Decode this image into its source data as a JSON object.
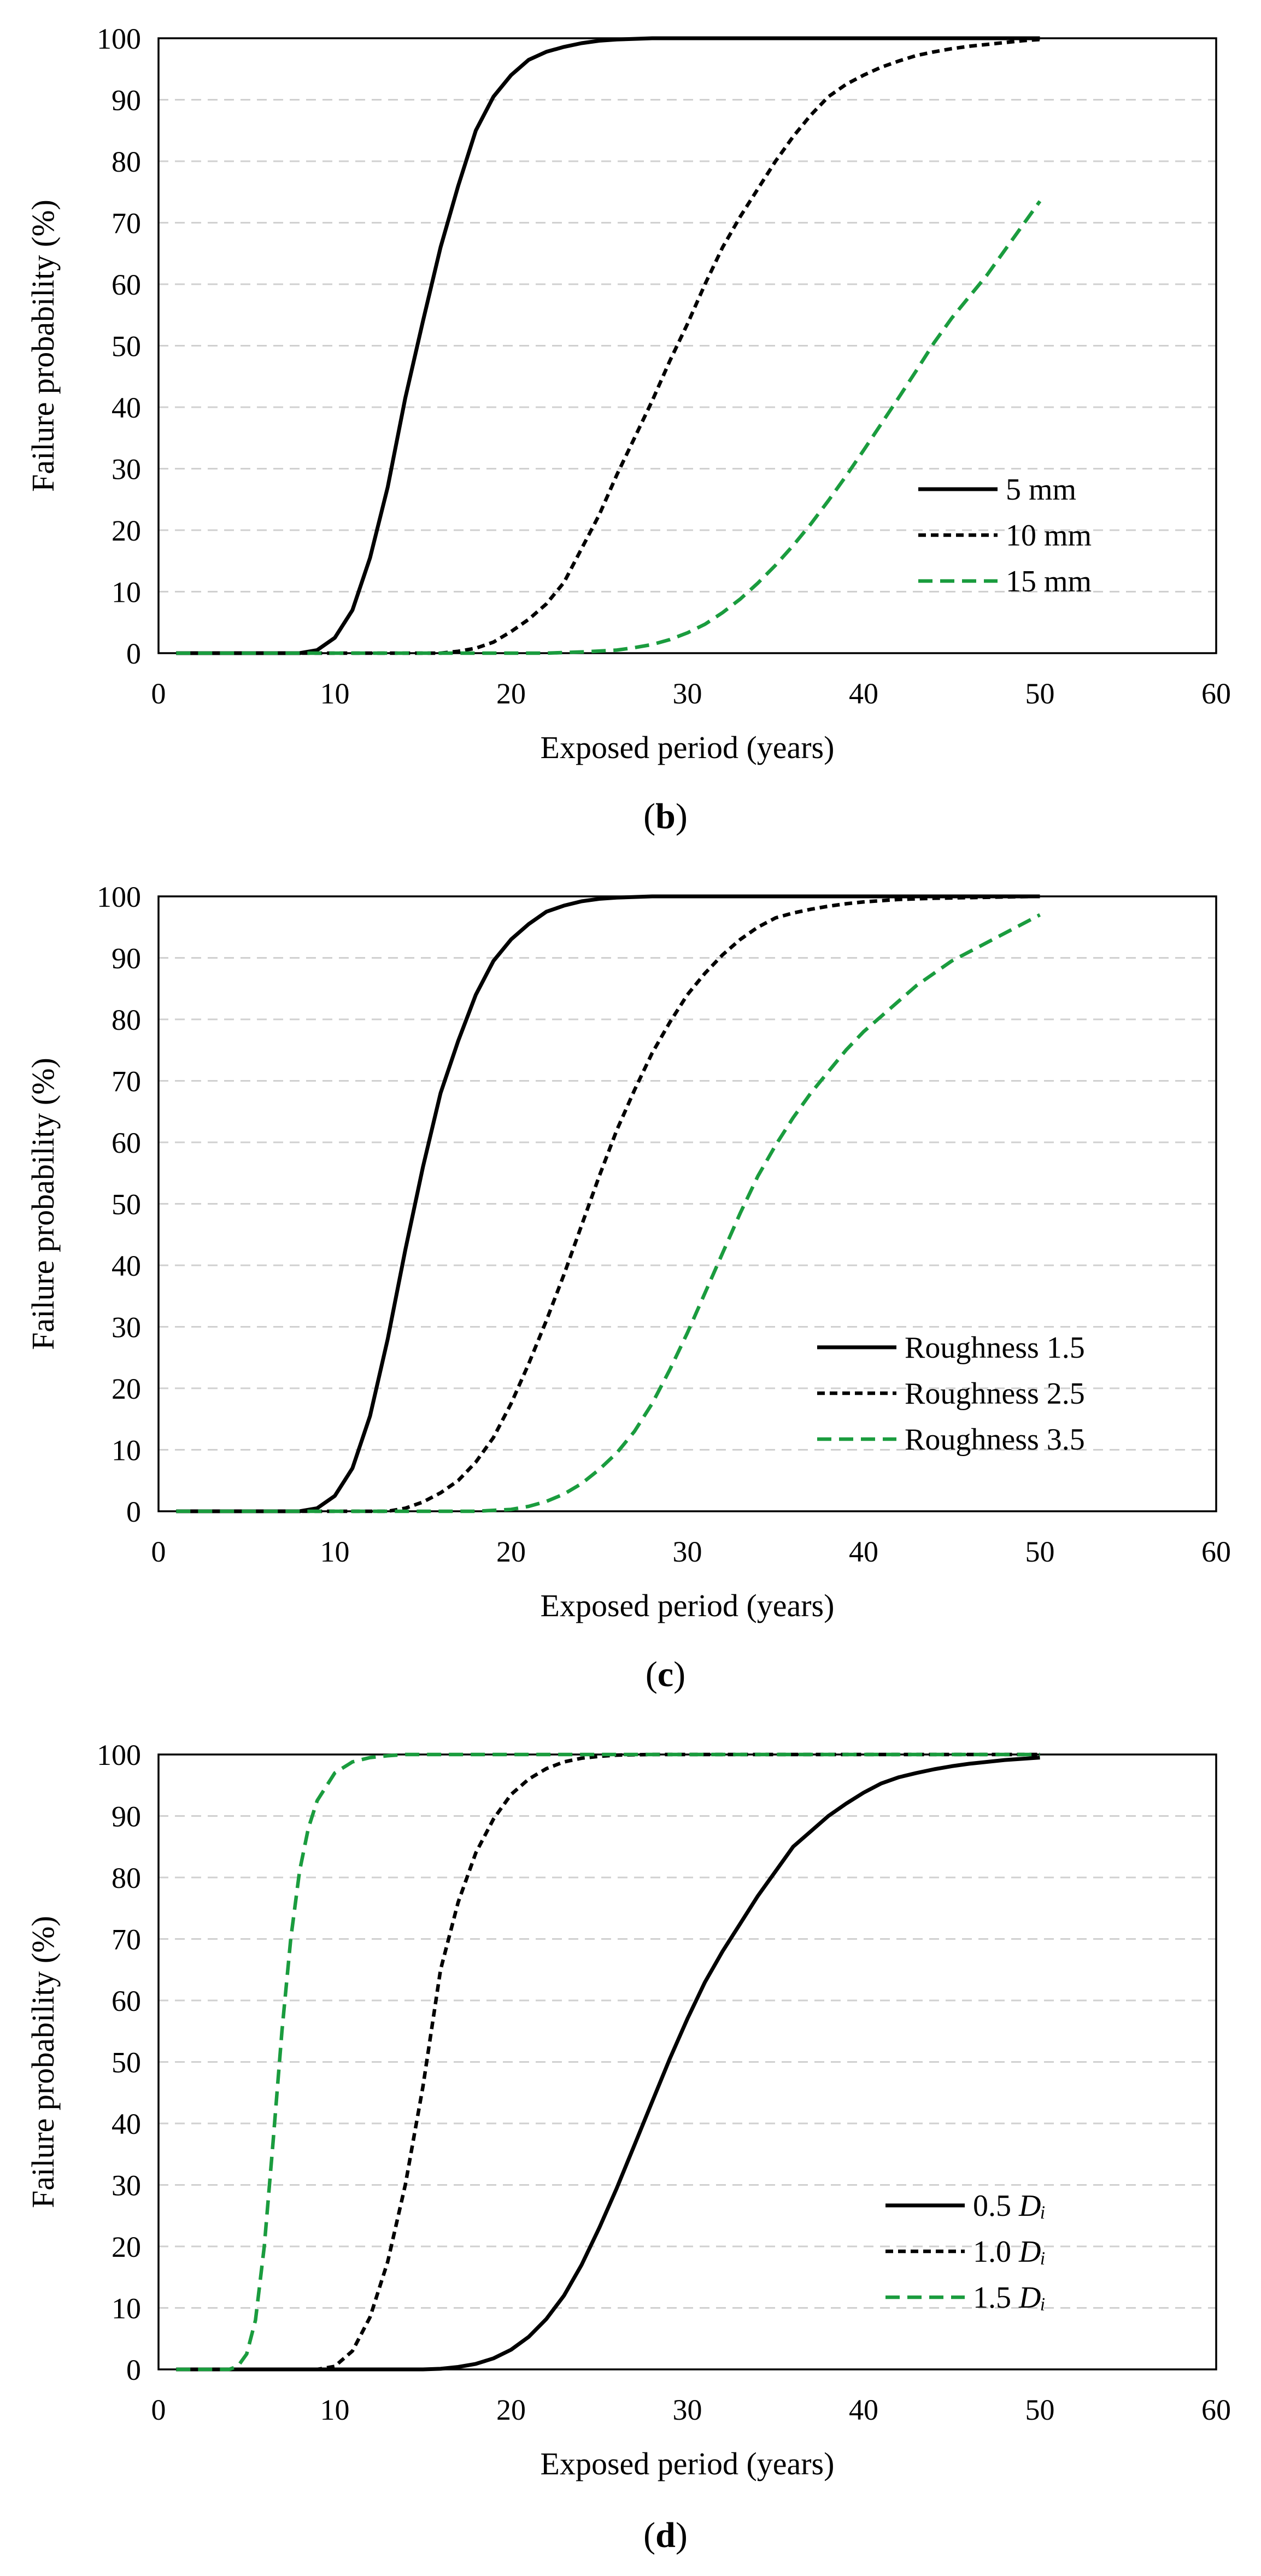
{
  "chart_data": [
    {
      "type": "line",
      "panel_label": "b",
      "xlabel": "Exposed period (years)",
      "ylabel": "Failure probability (%)",
      "xlim": [
        0,
        60
      ],
      "ylim": [
        0,
        100
      ],
      "xticks": [
        0,
        10,
        20,
        30,
        40,
        50,
        60
      ],
      "yticks": [
        0,
        10,
        20,
        30,
        40,
        50,
        60,
        70,
        80,
        90,
        100
      ],
      "grid": "horizontal-dashed",
      "legend_position": "bottom-right",
      "series": [
        {
          "name": "5 mm",
          "suffix": "",
          "color": "#000000",
          "style": "solid",
          "x": [
            1,
            8,
            9,
            10,
            11,
            12,
            13,
            14,
            15,
            16,
            17,
            18,
            19,
            20,
            21,
            22,
            23,
            24,
            25,
            26,
            28,
            30,
            35,
            40,
            50
          ],
          "y": [
            0,
            0,
            0.5,
            2.5,
            7,
            15.5,
            27,
            41.5,
            54,
            66,
            76,
            85,
            90.5,
            94,
            96.5,
            97.8,
            98.6,
            99.2,
            99.6,
            99.8,
            100,
            100,
            100,
            100,
            100
          ]
        },
        {
          "name": "10 mm",
          "suffix": "",
          "color": "#000000",
          "style": "dashed",
          "x": [
            1,
            16,
            17,
            18,
            19,
            20,
            21,
            22,
            23,
            24,
            25,
            26,
            27,
            28,
            29,
            30,
            31,
            32,
            33,
            34,
            35,
            36,
            37,
            38,
            39,
            40,
            41,
            42,
            43,
            44,
            45,
            46,
            47,
            48,
            49,
            50
          ],
          "y": [
            0,
            0,
            0.3,
            0.8,
            1.8,
            3.5,
            5.5,
            8,
            11.5,
            17,
            22.5,
            29,
            35,
            41,
            47.5,
            53.5,
            60,
            66,
            71,
            75.5,
            80,
            84,
            87.5,
            90.5,
            92.5,
            94,
            95.3,
            96.3,
            97.2,
            97.8,
            98.3,
            98.7,
            99,
            99.3,
            99.6,
            99.8
          ]
        },
        {
          "name": "15 mm",
          "suffix": "",
          "color": "#1a9c3e",
          "style": "long-dashed",
          "x": [
            1,
            22,
            24,
            26,
            27,
            28,
            29,
            30,
            31,
            32,
            33,
            34,
            35,
            36,
            37,
            38,
            39,
            40,
            41,
            42,
            43,
            44,
            45,
            46,
            47,
            48,
            49,
            50
          ],
          "y": [
            0,
            0,
            0.2,
            0.5,
            0.9,
            1.4,
            2.2,
            3.3,
            4.7,
            6.6,
            8.8,
            11.4,
            14.3,
            17.5,
            21,
            24.8,
            28.8,
            33,
            37.3,
            41.6,
            46,
            50.5,
            54.5,
            58,
            61.5,
            65.5,
            69.5,
            73.5
          ]
        }
      ]
    },
    {
      "type": "line",
      "panel_label": "c",
      "xlabel": "Exposed period (years)",
      "ylabel": "Failure probability (%)",
      "xlim": [
        0,
        60
      ],
      "ylim": [
        0,
        100
      ],
      "xticks": [
        0,
        10,
        20,
        30,
        40,
        50,
        60
      ],
      "yticks": [
        0,
        10,
        20,
        30,
        40,
        50,
        60,
        70,
        80,
        90,
        100
      ],
      "grid": "horizontal-dashed",
      "legend_position": "bottom-right",
      "series": [
        {
          "name": "Roughness 1.5",
          "suffix": "",
          "color": "#000000",
          "style": "solid",
          "x": [
            1,
            8,
            9,
            10,
            11,
            12,
            13,
            14,
            15,
            16,
            17,
            18,
            19,
            20,
            21,
            22,
            23,
            24,
            25,
            26,
            28,
            30,
            35,
            40,
            50
          ],
          "y": [
            0,
            0,
            0.5,
            2.5,
            7,
            15.5,
            28,
            42.5,
            56,
            68,
            76.5,
            84,
            89.5,
            93,
            95.5,
            97.5,
            98.5,
            99.2,
            99.6,
            99.8,
            100,
            100,
            100,
            100,
            100
          ]
        },
        {
          "name": "Roughness 2.5",
          "suffix": "",
          "color": "#000000",
          "style": "dashed",
          "x": [
            1,
            13,
            14,
            15,
            16,
            17,
            18,
            19,
            20,
            21,
            22,
            23,
            24,
            25,
            26,
            27,
            28,
            29,
            30,
            31,
            32,
            33,
            34,
            35,
            36,
            37,
            38,
            39,
            40,
            42,
            44,
            46,
            48,
            50
          ],
          "y": [
            0,
            0,
            0.5,
            1.5,
            3,
            5,
            8,
            12,
            17.5,
            24,
            31,
            38.5,
            46.5,
            54.5,
            62,
            68.5,
            74.5,
            79.5,
            84,
            87.5,
            90.5,
            93,
            95,
            96.5,
            97.3,
            97.9,
            98.4,
            98.8,
            99.1,
            99.5,
            99.7,
            99.8,
            99.9,
            100
          ]
        },
        {
          "name": "Roughness 3.5",
          "suffix": "",
          "color": "#1a9c3e",
          "style": "long-dashed",
          "x": [
            1,
            18,
            20,
            21,
            22,
            23,
            24,
            25,
            26,
            27,
            28,
            29,
            30,
            31,
            32,
            33,
            34,
            35,
            36,
            37,
            38,
            39,
            40,
            41,
            42,
            43,
            44,
            45,
            46,
            47,
            48,
            49,
            50
          ],
          "y": [
            0,
            0,
            0.3,
            0.8,
            1.6,
            2.8,
            4.5,
            6.8,
            9.5,
            13,
            17.5,
            23,
            29,
            35.5,
            42,
            48.5,
            54.5,
            59.5,
            64,
            68,
            71.5,
            75,
            78,
            80.5,
            83,
            85.5,
            87.5,
            89.5,
            91,
            92.5,
            94,
            95.5,
            97
          ]
        }
      ]
    },
    {
      "type": "line",
      "panel_label": "d",
      "xlabel": "Exposed period (years)",
      "ylabel": "Failure probability (%)",
      "xlim": [
        0,
        60
      ],
      "ylim": [
        0,
        100
      ],
      "xticks": [
        0,
        10,
        20,
        30,
        40,
        50,
        60
      ],
      "yticks": [
        0,
        10,
        20,
        30,
        40,
        50,
        60,
        70,
        80,
        90,
        100
      ],
      "grid": "horizontal-dashed",
      "legend_position": "bottom-right",
      "series": [
        {
          "name": "0.5 ",
          "suffix": "Dᵢ",
          "color": "#000000",
          "style": "solid",
          "x": [
            1,
            15,
            16,
            17,
            18,
            19,
            20,
            21,
            22,
            23,
            24,
            25,
            26,
            27,
            28,
            29,
            30,
            31,
            32,
            33,
            34,
            35,
            36,
            37,
            38,
            39,
            40,
            41,
            42,
            43,
            44,
            45,
            46,
            47,
            48,
            49,
            50
          ],
          "y": [
            0,
            0,
            0.1,
            0.4,
            0.9,
            1.8,
            3.2,
            5.3,
            8.2,
            12,
            17,
            23,
            29.5,
            36.5,
            43.5,
            50.5,
            57,
            63,
            68,
            72.5,
            77,
            81,
            85,
            87.5,
            90,
            92,
            93.8,
            95.3,
            96.3,
            97,
            97.6,
            98.1,
            98.5,
            98.8,
            99.1,
            99.3,
            99.5
          ]
        },
        {
          "name": "1.0 ",
          "suffix": "Dᵢ",
          "color": "#000000",
          "style": "dashed",
          "x": [
            1,
            9,
            10,
            11,
            12,
            13,
            14,
            15,
            16,
            17,
            18,
            19,
            20,
            21,
            22,
            23,
            24,
            25,
            26,
            28,
            30,
            35,
            40,
            50
          ],
          "y": [
            0,
            0,
            0.5,
            3,
            8.5,
            17.5,
            30,
            46,
            65,
            76,
            84,
            89.5,
            93.5,
            96,
            97.7,
            98.8,
            99.4,
            99.7,
            99.9,
            100,
            100,
            100,
            100,
            100
          ]
        },
        {
          "name": "1.5 ",
          "suffix": "Dᵢ",
          "color": "#1a9c3e",
          "style": "long-dashed",
          "x": [
            1,
            4,
            4.5,
            5,
            5.5,
            6,
            6.5,
            7,
            7.5,
            8,
            8.5,
            9,
            10,
            11,
            12,
            13,
            14,
            16,
            20,
            30,
            40,
            50
          ],
          "y": [
            0,
            0,
            0.5,
            2.5,
            8,
            20,
            37,
            55,
            70,
            81,
            88,
            92.5,
            97,
            98.8,
            99.5,
            99.8,
            100,
            100,
            100,
            100,
            100,
            100
          ]
        }
      ]
    }
  ]
}
